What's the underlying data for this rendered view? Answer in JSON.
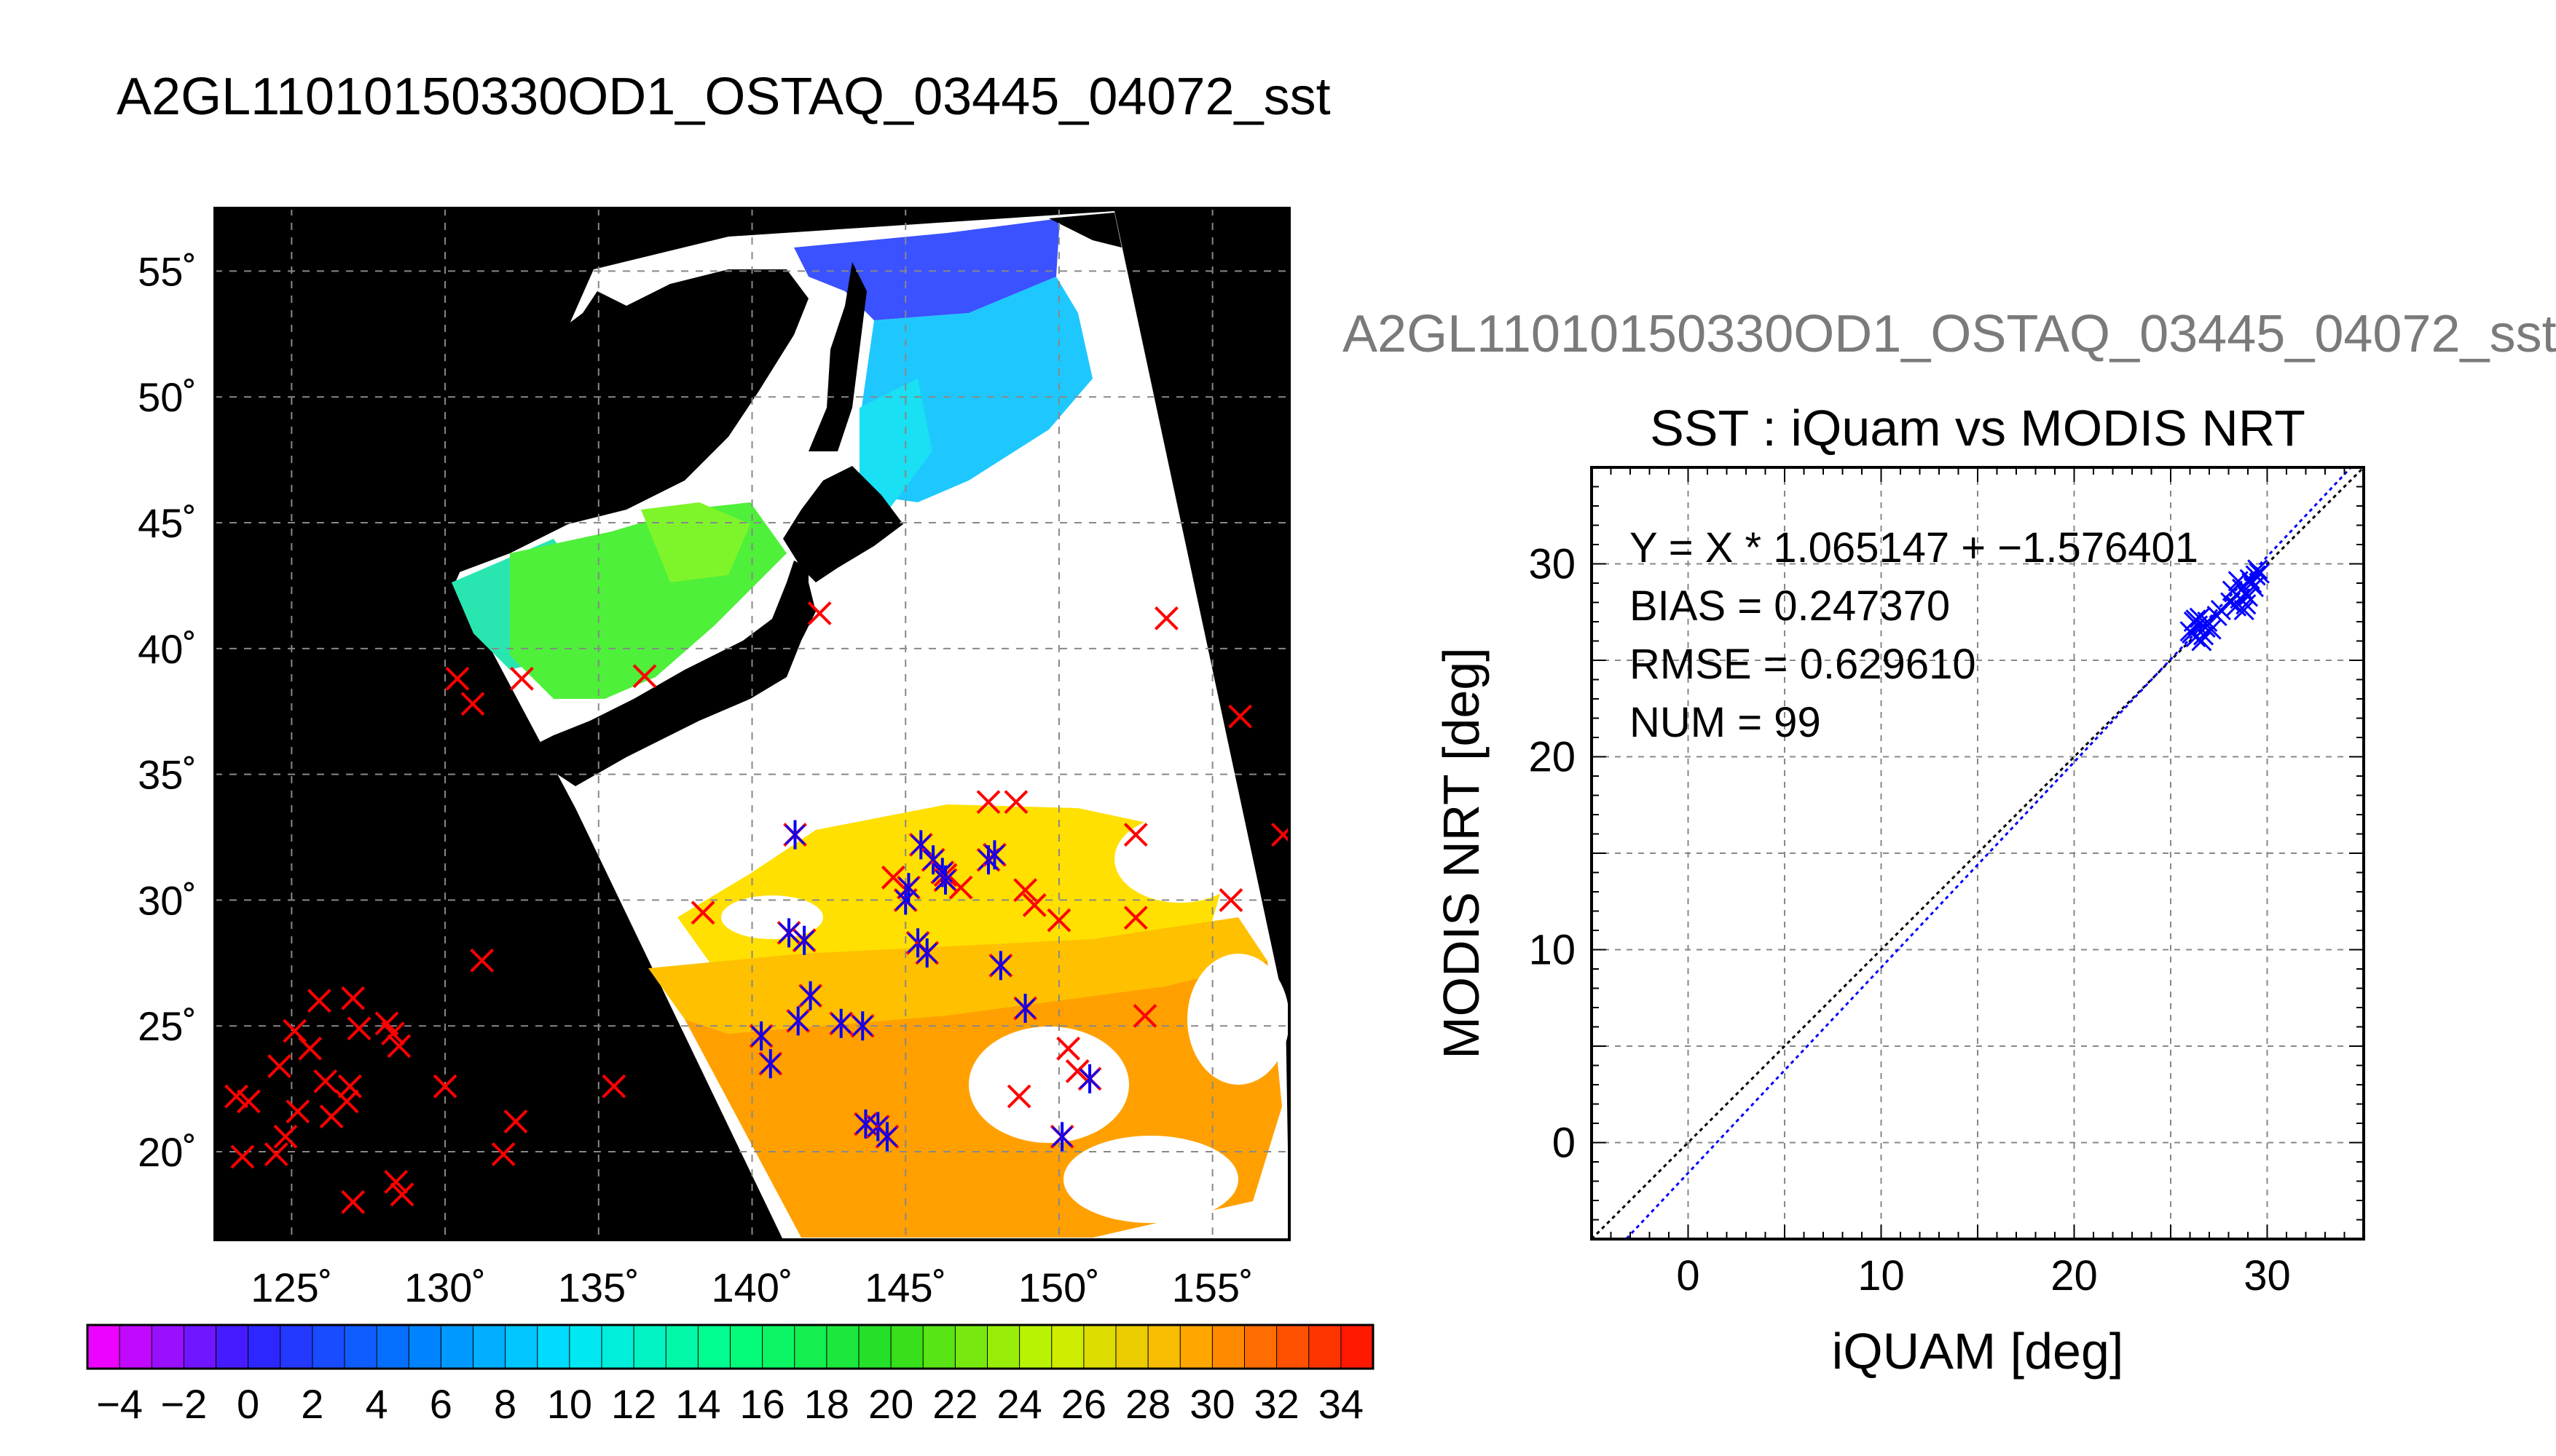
{
  "main_title": "A2GL11010150330OD1_OSTAQ_03445_04072_sst",
  "secondary_title": "A2GL11010150330OD1_OSTAQ_03445_04072_sst",
  "colors": {
    "sea_ice_land": "#000000",
    "cloud_mask": "#ffffff",
    "iquam_marker": "#ff0000",
    "matched_marker": "#0000ff",
    "fit_line": "#0000ff",
    "one_to_one_line": "#000000"
  },
  "chart_data": [
    {
      "type": "map",
      "name": "SST map",
      "projection": "equirectangular",
      "grid": true,
      "xlim": [
        122.5,
        157.5
      ],
      "ylim": [
        16.5,
        57.5
      ],
      "lon_ticks": [
        {
          "v": 125,
          "label": "125˚"
        },
        {
          "v": 130,
          "label": "130˚"
        },
        {
          "v": 135,
          "label": "135˚"
        },
        {
          "v": 140,
          "label": "140˚"
        },
        {
          "v": 145,
          "label": "145˚"
        },
        {
          "v": 150,
          "label": "150˚"
        },
        {
          "v": 155,
          "label": "155˚"
        }
      ],
      "lat_ticks": [
        {
          "v": 20,
          "label": "20˚"
        },
        {
          "v": 25,
          "label": "25˚"
        },
        {
          "v": 30,
          "label": "30˚"
        },
        {
          "v": 35,
          "label": "35˚"
        },
        {
          "v": 40,
          "label": "40˚"
        },
        {
          "v": 45,
          "label": "45˚"
        },
        {
          "v": 50,
          "label": "50˚"
        },
        {
          "v": 55,
          "label": "55˚"
        }
      ],
      "iquam_points_outside_swath": [
        [
          123.2,
          22.2
        ],
        [
          123.6,
          22.0
        ],
        [
          123.4,
          19.8
        ],
        [
          124.5,
          19.9
        ],
        [
          124.8,
          20.6
        ],
        [
          125.2,
          21.6
        ],
        [
          124.6,
          23.4
        ],
        [
          125.1,
          24.8
        ],
        [
          125.6,
          24.1
        ],
        [
          125.9,
          26.0
        ],
        [
          126.1,
          22.8
        ],
        [
          126.3,
          21.4
        ],
        [
          126.9,
          22.6
        ],
        [
          126.8,
          22.0
        ],
        [
          127.0,
          26.1
        ],
        [
          127.2,
          24.9
        ],
        [
          127.0,
          18.0
        ],
        [
          128.1,
          25.1
        ],
        [
          128.3,
          24.7
        ],
        [
          128.5,
          24.2
        ],
        [
          128.4,
          18.8
        ],
        [
          128.6,
          18.3
        ],
        [
          130.0,
          22.6
        ],
        [
          130.4,
          38.8
        ],
        [
          130.9,
          37.8
        ],
        [
          131.2,
          27.6
        ],
        [
          131.9,
          19.9
        ],
        [
          132.3,
          21.2
        ],
        [
          132.5,
          38.8
        ],
        [
          135.5,
          22.6
        ],
        [
          153.5,
          41.2
        ],
        [
          155.9,
          37.3
        ],
        [
          155.6,
          30.0
        ],
        [
          157.3,
          32.6
        ]
      ],
      "iquam_points_cloud": [
        [
          136.5,
          38.9
        ],
        [
          142.2,
          41.4
        ],
        [
          138.4,
          29.5
        ],
        [
          147.7,
          33.9
        ],
        [
          148.6,
          33.9
        ],
        [
          148.9,
          30.4
        ],
        [
          150.0,
          29.2
        ],
        [
          152.5,
          32.6
        ],
        [
          152.5,
          29.3
        ],
        [
          152.8,
          25.4
        ],
        [
          148.7,
          22.2
        ],
        [
          149.2,
          29.8
        ],
        [
          146.3,
          31.0
        ],
        [
          146.8,
          30.5
        ],
        [
          150.3,
          24.1
        ],
        [
          150.6,
          23.2
        ],
        [
          144.6,
          30.9
        ]
      ],
      "matched_points": [
        [
          141.4,
          32.6
        ],
        [
          141.2,
          28.7
        ],
        [
          141.7,
          28.4
        ],
        [
          141.9,
          26.2
        ],
        [
          141.5,
          25.2
        ],
        [
          140.3,
          24.6
        ],
        [
          140.6,
          23.5
        ],
        [
          142.9,
          25.1
        ],
        [
          143.6,
          25.0
        ],
        [
          143.7,
          21.1
        ],
        [
          144.1,
          21.0
        ],
        [
          144.4,
          20.6
        ],
        [
          145.0,
          30.0
        ],
        [
          145.1,
          30.5
        ],
        [
          145.5,
          32.2
        ],
        [
          145.9,
          31.6
        ],
        [
          146.2,
          31.1
        ],
        [
          146.3,
          30.8
        ],
        [
          147.7,
          31.6
        ],
        [
          145.4,
          28.3
        ],
        [
          145.7,
          27.9
        ],
        [
          148.1,
          27.4
        ],
        [
          148.9,
          25.7
        ],
        [
          150.1,
          20.6
        ],
        [
          151.0,
          22.9
        ],
        [
          147.9,
          31.8
        ]
      ]
    },
    {
      "type": "colorbar",
      "name": "SST color scale",
      "min": -5,
      "max": 35,
      "step": 2,
      "tick_labels": [
        "−4",
        "−2",
        "0",
        "2",
        "4",
        "6",
        "8",
        "10",
        "12",
        "14",
        "16",
        "18",
        "20",
        "22",
        "24",
        "26",
        "28",
        "30",
        "32",
        "34"
      ],
      "tick_values": [
        -4,
        -2,
        0,
        2,
        4,
        6,
        8,
        10,
        12,
        14,
        16,
        18,
        20,
        22,
        24,
        26,
        28,
        30,
        32,
        34
      ]
    },
    {
      "type": "scatter",
      "title": "SST : iQuam vs MODIS NRT",
      "xlabel": "iQUAM [deg]",
      "ylabel": "MODIS NRT [deg]",
      "xlim": [
        -5,
        35
      ],
      "ylim": [
        -5,
        35
      ],
      "grid": true,
      "x_ticks": [
        {
          "v": 0,
          "label": "0"
        },
        {
          "v": 10,
          "label": "10"
        },
        {
          "v": 20,
          "label": "20"
        },
        {
          "v": 30,
          "label": "30"
        }
      ],
      "y_ticks": [
        {
          "v": 0,
          "label": "0"
        },
        {
          "v": 10,
          "label": "10"
        },
        {
          "v": 20,
          "label": "20"
        },
        {
          "v": 30,
          "label": "30"
        }
      ],
      "stats": [
        "Y = X * 1.065147 + −1.576401",
        "BIAS = 0.247370",
        "RMSE = 0.629610",
        "NUM = 99"
      ],
      "fit": {
        "slope": 1.065147,
        "intercept": -1.576401
      },
      "points": [
        [
          26.0,
          26.5
        ],
        [
          26.2,
          27.0
        ],
        [
          26.3,
          26.2
        ],
        [
          26.4,
          26.8
        ],
        [
          26.5,
          27.2
        ],
        [
          26.6,
          26.0
        ],
        [
          26.8,
          26.7
        ],
        [
          26.9,
          27.0
        ],
        [
          27.1,
          26.6
        ],
        [
          26.7,
          26.3
        ],
        [
          26.3,
          27.1
        ],
        [
          26.1,
          26.4
        ],
        [
          27.4,
          27.3
        ],
        [
          27.6,
          27.6
        ],
        [
          28.1,
          28.0
        ],
        [
          28.4,
          27.8
        ],
        [
          28.6,
          28.2
        ],
        [
          28.7,
          28.7
        ],
        [
          28.8,
          27.6
        ],
        [
          28.9,
          27.9
        ],
        [
          29.0,
          28.3
        ],
        [
          29.2,
          29.0
        ],
        [
          29.4,
          29.4
        ],
        [
          29.5,
          29.7
        ],
        [
          28.5,
          29.1
        ],
        [
          29.1,
          29.2
        ],
        [
          28.2,
          28.6
        ],
        [
          29.3,
          28.8
        ],
        [
          28.9,
          28.4
        ],
        [
          29.6,
          29.5
        ]
      ]
    }
  ]
}
